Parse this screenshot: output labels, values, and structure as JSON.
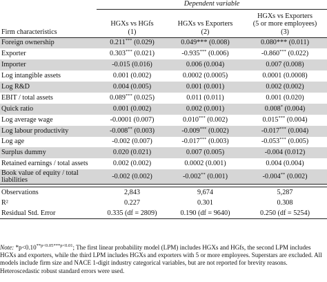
{
  "header": {
    "dependent_variable": "Dependent variable",
    "col_label": "Firm characteristics",
    "models": [
      {
        "title": "HGXs vs HGfs",
        "num": "(1)"
      },
      {
        "title": "HGXs vs Exporters",
        "num": "(2)"
      },
      {
        "title": "HGXs vs Exporters\n(5 or more employees)",
        "num": "(3)"
      }
    ]
  },
  "rows": [
    {
      "label": "Foreign ownership",
      "shaded": true,
      "cells": [
        {
          "v": "0.211",
          "s": "***",
          "r": "(0.029)"
        },
        {
          "v": "0.049***",
          "s": "",
          "r": "(0.008)"
        },
        {
          "v": "0.080***",
          "s": "",
          "r": "(0.011)"
        }
      ]
    },
    {
      "label": "Exporter",
      "shaded": false,
      "cells": [
        {
          "v": "0.303",
          "s": "***",
          "r": "(0.021)"
        },
        {
          "v": "-0.935",
          "s": "***",
          "r": "(0.006)"
        },
        {
          "v": "-0.860",
          "s": "***",
          "r": "(0.022)"
        }
      ]
    },
    {
      "label": "Importer",
      "shaded": true,
      "cells": [
        {
          "v": "-0.015",
          "s": "",
          "r": "(0.016)"
        },
        {
          "v": "0.006",
          "s": "",
          "r": "(0.004)"
        },
        {
          "v": "0.007",
          "s": "",
          "r": "(0.008)"
        }
      ]
    },
    {
      "label": "Log intangible assets",
      "shaded": false,
      "cells": [
        {
          "v": "0.001",
          "s": "",
          "r": "(0.002)"
        },
        {
          "v": "0.0002",
          "s": "",
          "r": "(0.0005)"
        },
        {
          "v": "0.0001",
          "s": "",
          "r": "(0.0008)"
        }
      ]
    },
    {
      "label": "Log R&D",
      "shaded": true,
      "cells": [
        {
          "v": "0.004",
          "s": "",
          "r": "(0.005)"
        },
        {
          "v": "0.001",
          "s": "",
          "r": "(0.001)"
        },
        {
          "v": "0.002",
          "s": "",
          "r": "(0.002)"
        }
      ]
    },
    {
      "label": "EBIT / total assets",
      "shaded": false,
      "cells": [
        {
          "v": "0.089",
          "s": "***",
          "r": "(0.025)"
        },
        {
          "v": "0.011",
          "s": "",
          "r": "(0.011)"
        },
        {
          "v": "0.001",
          "s": "",
          "r": "(0.020)"
        }
      ]
    },
    {
      "label": "Quick ratio",
      "shaded": true,
      "cells": [
        {
          "v": "0.001",
          "s": "",
          "r": "(0.002)"
        },
        {
          "v": "0.002",
          "s": "",
          "r": "(0.001)"
        },
        {
          "v": "0.008",
          "s": "*",
          "r": "(0.004)"
        }
      ]
    },
    {
      "label": "Log average wage",
      "shaded": false,
      "cells": [
        {
          "v": "-0.0001",
          "s": "",
          "r": "(0.007)"
        },
        {
          "v": "0.010",
          "s": "***",
          "r": "(0.002)"
        },
        {
          "v": "0.015",
          "s": "***",
          "r": "(0.004)"
        }
      ]
    },
    {
      "label": "Log labour productivity",
      "shaded": true,
      "cells": [
        {
          "v": "-0.008",
          "s": "**",
          "r": "(0.003)"
        },
        {
          "v": "-0.009",
          "s": "***",
          "r": "(0.002)"
        },
        {
          "v": "-0.017",
          "s": "***",
          "r": "(0.004)"
        }
      ]
    },
    {
      "label": "Log age",
      "shaded": false,
      "cells": [
        {
          "v": "-0.002",
          "s": "",
          "r": "(0.007)"
        },
        {
          "v": "-0.017",
          "s": "***",
          "r": "(0.003)"
        },
        {
          "v": "-0.053",
          "s": "***",
          "r": "(0.005)"
        }
      ]
    },
    {
      "label": "Surplus dummy",
      "shaded": true,
      "cells": [
        {
          "v": "0.020",
          "s": "",
          "r": "(0.021)"
        },
        {
          "v": "0.007",
          "s": "",
          "r": "(0.005)"
        },
        {
          "v": "-0.004",
          "s": "",
          "r": "(0.012)"
        }
      ]
    },
    {
      "label": "Retained earnings / total assets",
      "shaded": false,
      "cells": [
        {
          "v": "0.002",
          "s": "",
          "r": "(0.002)"
        },
        {
          "v": "0.0002",
          "s": "",
          "r": "(0.001)"
        },
        {
          "v": "0.004",
          "s": "",
          "r": "(0.004)"
        }
      ]
    },
    {
      "label": "Book value of equity / total liabilities",
      "shaded": true,
      "tall": true,
      "cells": [
        {
          "v": "-0.002",
          "s": "",
          "r": "(0.002)"
        },
        {
          "v": "-0.002",
          "s": "**",
          "r": "(0.001)"
        },
        {
          "v": "-0.004",
          "s": "**",
          "r": "(0.002)"
        }
      ]
    }
  ],
  "stats": [
    {
      "label": "Observations",
      "values": [
        "2,843",
        "9,674",
        "5,287"
      ]
    },
    {
      "label": "R²",
      "values": [
        "0.227",
        "0.301",
        "0.308"
      ]
    },
    {
      "label": "Residual Std. Error",
      "values": [
        "0.335 (df = 2809)",
        "0.190 (df = 9640)",
        "0.250 (df = 5254)"
      ]
    }
  ],
  "note": {
    "label": "Note:",
    "p1": " *p<0.10",
    "p2": "**p<0.05",
    "p3": "***p<0.01",
    "text": "; The first linear probability model (LPM) includes HGXs and HGfs, the second LPM includes HGXs and exporters, while the third LPM includes HGXs and exporters with 5 or more employees. Superstars are excluded. All models include firm size and NACE 1-digit industry categorical variables, but are not reported for brevity reasons. Heteroscedastic robust standard errors were used."
  }
}
